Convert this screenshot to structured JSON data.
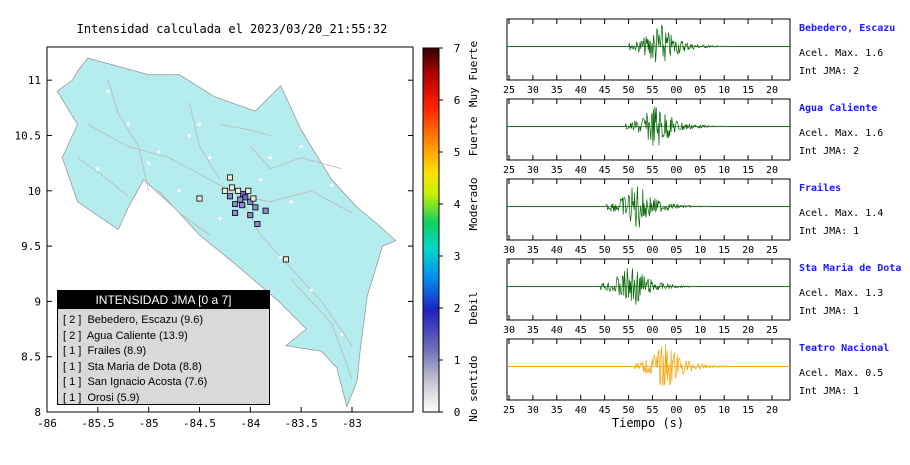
{
  "map": {
    "title": "Intensidad calculada el 2023/03/20_21:55:32",
    "xlim": [
      -86,
      -82.4
    ],
    "ylim": [
      8,
      11.3
    ],
    "xticks": [
      -86,
      -85.5,
      -85,
      -84.5,
      -84,
      -83.5,
      -83
    ],
    "xtick_labels": [
      "-86",
      "-85.5",
      "-85",
      "-84.5",
      "-84",
      "-83.5",
      "-83"
    ],
    "yticks": [
      8,
      8.5,
      9,
      9.5,
      10,
      10.5,
      11
    ],
    "ytick_labels": [
      "8",
      "8.5",
      "9",
      "9.5",
      "10",
      "10.5",
      "11"
    ],
    "land_color": "#b5ecee",
    "stations": [
      {
        "lon": -84.07,
        "lat": 9.97,
        "value": 2
      },
      {
        "lon": -84.05,
        "lat": 9.94,
        "value": 2
      },
      {
        "lon": -84.1,
        "lat": 9.92,
        "value": 1
      },
      {
        "lon": -84.15,
        "lat": 9.88,
        "value": 1
      },
      {
        "lon": -84.2,
        "lat": 9.95,
        "value": 1
      },
      {
        "lon": -84.0,
        "lat": 9.9,
        "value": 1
      },
      {
        "lon": -83.95,
        "lat": 9.85,
        "value": 1
      },
      {
        "lon": -84.12,
        "lat": 10.0,
        "value": 0
      },
      {
        "lon": -84.02,
        "lat": 10.0,
        "value": 0
      },
      {
        "lon": -84.18,
        "lat": 10.03,
        "value": 0
      },
      {
        "lon": -84.25,
        "lat": 10.0,
        "value": 0
      },
      {
        "lon": -84.5,
        "lat": 9.93,
        "value": 0
      },
      {
        "lon": -84.2,
        "lat": 10.12,
        "value": 0
      },
      {
        "lon": -83.97,
        "lat": 9.93,
        "value": 0
      },
      {
        "lon": -84.08,
        "lat": 9.87,
        "value": 1
      },
      {
        "lon": -84.15,
        "lat": 9.8,
        "value": 1
      },
      {
        "lon": -84.0,
        "lat": 9.78,
        "value": 1
      },
      {
        "lon": -83.85,
        "lat": 9.82,
        "value": 1
      },
      {
        "lon": -83.93,
        "lat": 9.7,
        "value": 1
      },
      {
        "lon": -83.65,
        "lat": 9.38,
        "value": 0
      }
    ]
  },
  "colorbar": {
    "min": 0,
    "max": 7,
    "ticks": [
      "0",
      "1",
      "2",
      "3",
      "4",
      "5",
      "6",
      "7"
    ],
    "categories": [
      "No sentido",
      "Debil",
      "Moderado",
      "Fuerte",
      "Muy Fuerte"
    ],
    "colors": [
      "#ffffff",
      "#3030a8",
      "#0090f0",
      "#00d8d0",
      "#10d070",
      "#ffff00",
      "#ff8000",
      "#ff0000",
      "#400000"
    ]
  },
  "legend": {
    "title": "INTENSIDAD JMA [0 a 7]",
    "entries": [
      "[ 2 ]  Bebedero, Escazu (9.6)",
      "[ 2 ]  Agua Caliente (13.9)",
      "[ 1 ]  Frailes (8.9)",
      "[ 1 ]  Sta Maria de Dota (8.8)",
      "[ 1 ]  San Ignacio Acosta (7.6)",
      "[ 1 ]  Orosi (5.9)"
    ]
  },
  "seismograms": {
    "xlabel": "Tiempo (s)",
    "traces": [
      {
        "station": "Bebedero, Escazu",
        "acel": "Acel. Max. 1.6",
        "int": "Int JMA: 2",
        "color": "#006400",
        "ticks": [
          "25",
          "30",
          "35",
          "40",
          "45",
          "50",
          "55",
          "00",
          "05",
          "10",
          "15",
          "20"
        ],
        "burst": 0.43,
        "amp": 1.0
      },
      {
        "station": "Agua Caliente",
        "acel": "Acel. Max. 1.6",
        "int": "Int JMA: 2",
        "color": "#006400",
        "ticks": [
          "25",
          "30",
          "35",
          "40",
          "45",
          "50",
          "55",
          "00",
          "05",
          "10",
          "15",
          "20"
        ],
        "burst": 0.42,
        "amp": 1.0
      },
      {
        "station": "Frailes",
        "acel": "Acel. Max. 1.4",
        "int": "Int JMA: 1",
        "color": "#006400",
        "ticks": [
          "30",
          "35",
          "40",
          "45",
          "50",
          "55",
          "00",
          "05",
          "10",
          "15",
          "20",
          "25"
        ],
        "burst": 0.35,
        "amp": 1.0
      },
      {
        "station": "Sta Maria de Dota",
        "acel": "Acel. Max. 1.3",
        "int": "Int JMA: 1",
        "color": "#006400",
        "ticks": [
          "30",
          "35",
          "40",
          "45",
          "50",
          "55",
          "00",
          "05",
          "10",
          "15",
          "20",
          "25"
        ],
        "burst": 0.33,
        "amp": 1.0
      },
      {
        "station": "Teatro Nacional",
        "acel": "Acel. Max. 0.5",
        "int": "Int JMA: 1",
        "color": "#f5a000",
        "ticks": [
          "25",
          "30",
          "35",
          "40",
          "45",
          "50",
          "55",
          "00",
          "05",
          "10",
          "15",
          "20"
        ],
        "burst": 0.45,
        "amp": 1.0
      }
    ]
  }
}
